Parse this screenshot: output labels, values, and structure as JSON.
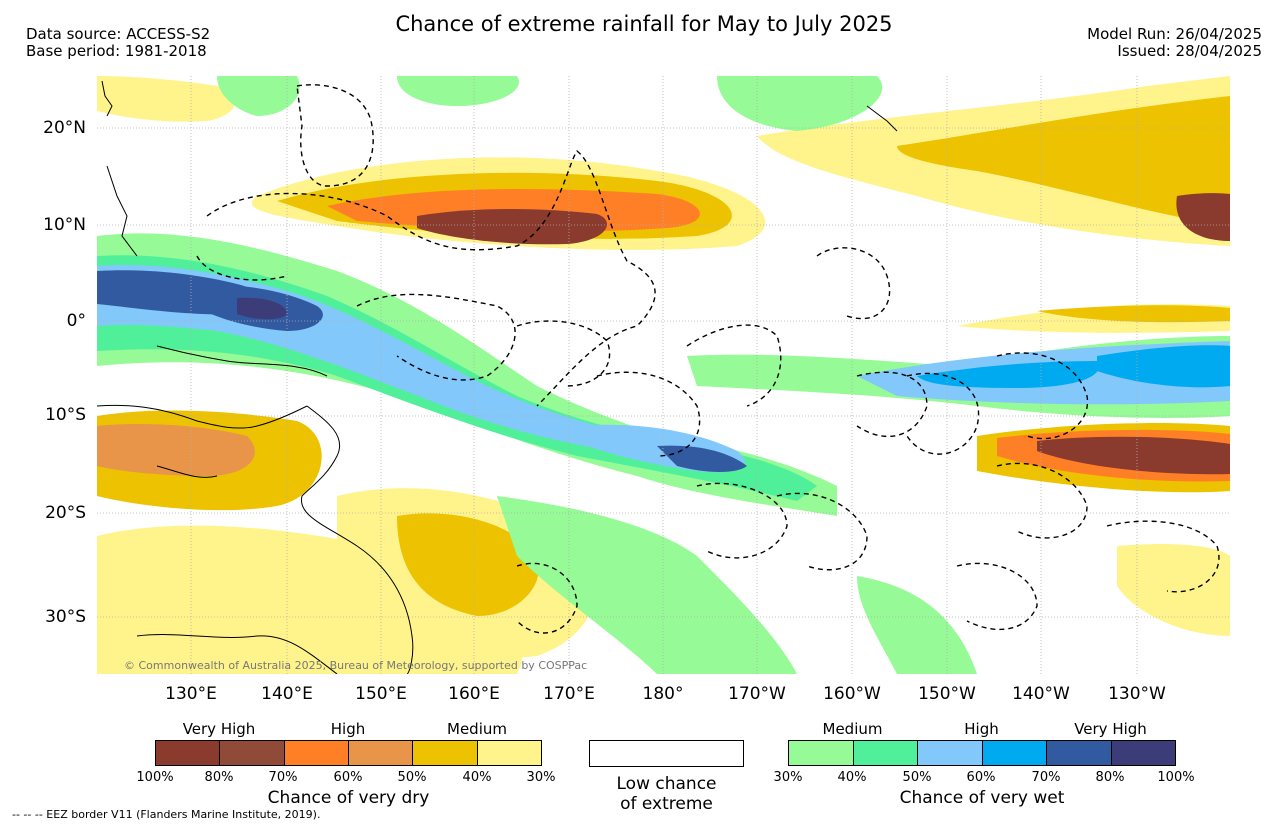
{
  "header": {
    "title": "Chance of extreme rainfall for May to July 2025",
    "data_source": "Data source: ACCESS-S2",
    "base_period": "Base period: 1981-2018",
    "model_run": "Model Run: 26/04/2025",
    "issued": "Issued: 28/04/2025"
  },
  "map": {
    "lat_labels": [
      "20°N",
      "10°N",
      "0°",
      "10°S",
      "20°S",
      "30°S"
    ],
    "lon_labels": [
      "130°E",
      "140°E",
      "150°E",
      "160°E",
      "170°E",
      "180°",
      "170°W",
      "160°W",
      "150°W",
      "140°W",
      "130°W"
    ],
    "copyright": "© Commonwealth of Australia 2025, Bureau of Meteorology, supported by COSPPac"
  },
  "legend": {
    "dry": {
      "headers": [
        "Very High",
        "High",
        "Medium"
      ],
      "colors": [
        "#8b3a2e",
        "#8f4a38",
        "#ff7f27",
        "#e8954a",
        "#edc200",
        "#fff48c"
      ],
      "ticks": [
        "100%",
        "80%",
        "70%",
        "60%",
        "50%",
        "40%",
        "30%"
      ],
      "label": "Chance of very dry"
    },
    "low": {
      "label_line1": "Low chance",
      "label_line2": "of extreme"
    },
    "wet": {
      "headers": [
        "Medium",
        "High",
        "Very High"
      ],
      "colors": [
        "#96fa96",
        "#50f09a",
        "#82c8fa",
        "#00aaf0",
        "#325aa0",
        "#3c3c78"
      ],
      "ticks": [
        "30%",
        "40%",
        "50%",
        "60%",
        "70%",
        "80%",
        "100%"
      ],
      "label": "Chance of very wet"
    }
  },
  "footer": "--  --  -- EEZ border V11 (Flanders Marine Institute, 2019)."
}
